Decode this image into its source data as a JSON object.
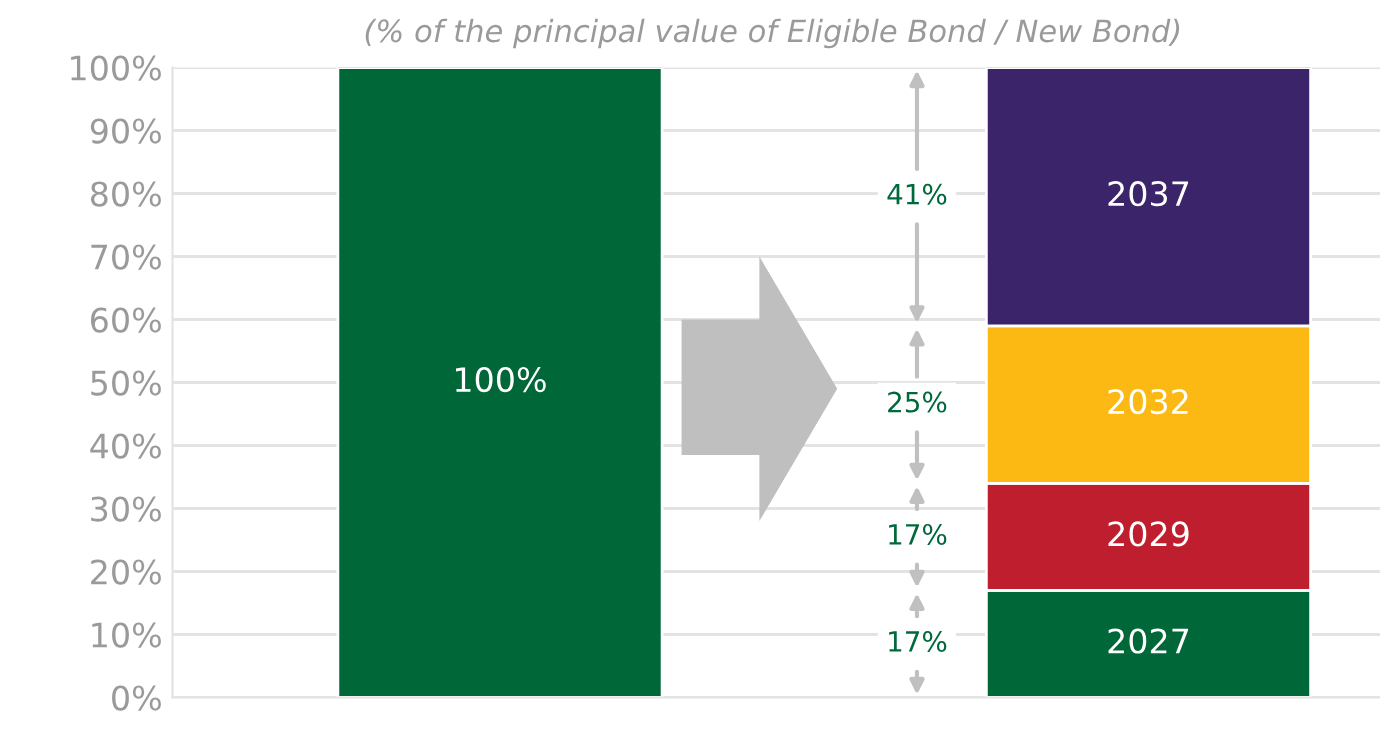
{
  "chart_data": {
    "type": "bar",
    "stacked": true,
    "subtitle": "(% of the principal value of Eligible Bond / New Bond)",
    "categories": [
      null,
      null
    ],
    "series": [
      {
        "color": "#006838",
        "values": [
          100,
          null
        ],
        "value_labels": [
          "100%",
          null
        ]
      },
      {
        "name": "2027",
        "color": "#006838",
        "values": [
          null,
          17
        ]
      },
      {
        "name": "2029",
        "color": "#be1e2d",
        "values": [
          null,
          17
        ]
      },
      {
        "name": "2032",
        "color": "#fdb913",
        "values": [
          null,
          25
        ]
      },
      {
        "name": "2037",
        "color": "#3b2469",
        "values": [
          null,
          41
        ]
      }
    ],
    "annotations": [
      {
        "text": "17%",
        "y": 8.5
      },
      {
        "text": "17%",
        "y": 25.5
      },
      {
        "text": "25%",
        "y": 46.5
      },
      {
        "text": "41%",
        "y": 79.5
      }
    ],
    "ylim": [
      0,
      100
    ],
    "yticks": [
      {
        "value": 0,
        "label": "0%"
      },
      {
        "value": 10,
        "label": "10%"
      },
      {
        "value": 20,
        "label": "20%"
      },
      {
        "value": 30,
        "label": "30%"
      },
      {
        "value": 40,
        "label": "40%"
      },
      {
        "value": 50,
        "label": "50%"
      },
      {
        "value": 60,
        "label": "60%"
      },
      {
        "value": 70,
        "label": "70%"
      },
      {
        "value": 80,
        "label": "80%"
      },
      {
        "value": 90,
        "label": "90%"
      },
      {
        "value": 100,
        "label": "100%"
      }
    ],
    "grid": "y",
    "legend": false
  }
}
